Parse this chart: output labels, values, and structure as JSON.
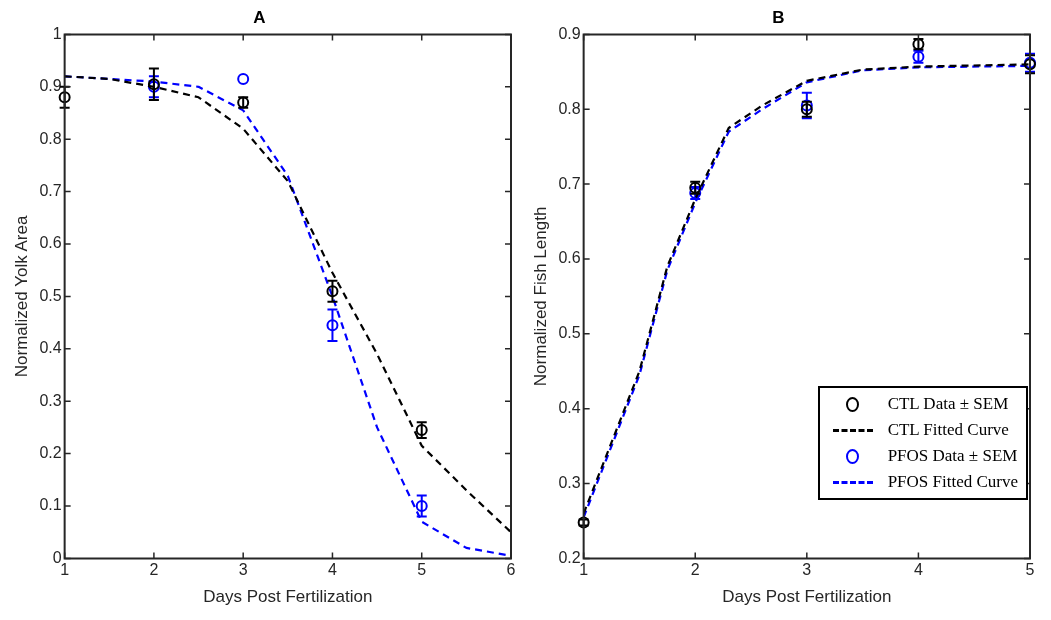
{
  "chart_data": [
    {
      "type": "line",
      "title": "A",
      "xlabel": "Days Post Fertilization",
      "ylabel": "Normalized Yolk Area",
      "xlim": [
        1,
        6
      ],
      "xticks": [
        1,
        2,
        3,
        4,
        5,
        6
      ],
      "ylim": [
        0,
        1
      ],
      "yticks": [
        0,
        0.1,
        0.2,
        0.3,
        0.4,
        0.5,
        0.6,
        0.7,
        0.8,
        0.9,
        1
      ],
      "grid": false,
      "legend": false,
      "series": [
        {
          "type": "scatter",
          "color": "#000000",
          "marker": "circle",
          "x": [
            1,
            2,
            3,
            4,
            5
          ],
          "values": [
            0.88,
            0.905,
            0.87,
            0.51,
            0.245
          ],
          "errors": [
            0.02,
            0.03,
            0.01,
            0.02,
            0.015
          ]
        },
        {
          "color": "#000000",
          "line_style": "dashed",
          "x": [
            1,
            1.5,
            2,
            2.5,
            3,
            3.5,
            4,
            4.5,
            5,
            5.5,
            6
          ],
          "values": [
            0.92,
            0.915,
            0.9,
            0.88,
            0.82,
            0.72,
            0.545,
            0.39,
            0.215,
            0.13,
            0.05
          ]
        },
        {
          "type": "scatter",
          "color": "#0000ff",
          "marker": "circle",
          "x": [
            2,
            3,
            4,
            5
          ],
          "values": [
            0.9,
            0.915,
            0.445,
            0.1
          ],
          "errors": [
            0.02,
            null,
            0.03,
            0.02
          ]
        },
        {
          "color": "#0000ff",
          "line_style": "dashed",
          "x": [
            1,
            2,
            2.5,
            3,
            3.5,
            4,
            4.5,
            5,
            5.5,
            6
          ],
          "values": [
            0.92,
            0.91,
            0.9,
            0.855,
            0.73,
            0.5,
            0.25,
            0.07,
            0.02,
            0.005
          ]
        }
      ]
    },
    {
      "type": "line",
      "title": "B",
      "xlabel": "Days Post Fertilization",
      "ylabel": "Normalized Fish Length",
      "xlim": [
        1,
        5
      ],
      "xticks": [
        1,
        2,
        3,
        4,
        5
      ],
      "ylim": [
        0.2,
        0.9
      ],
      "yticks": [
        0.2,
        0.3,
        0.4,
        0.5,
        0.6,
        0.7,
        0.8,
        0.9
      ],
      "grid": false,
      "legend": "bottom right",
      "series": [
        {
          "type": "scatter",
          "name": "CTL Data ± SEM",
          "color": "#000000",
          "marker": "circle",
          "x": [
            1,
            2,
            3,
            4,
            5
          ],
          "values": [
            0.248,
            0.695,
            0.8,
            0.887,
            0.86
          ],
          "errors": [
            0.004,
            0.008,
            0.01,
            0.007,
            0.012
          ]
        },
        {
          "name": "CTL Fitted Curve",
          "color": "#000000",
          "line_style": "dashed",
          "x": [
            1,
            1.5,
            1.75,
            2,
            2.3,
            2.6,
            3,
            3.5,
            4,
            5
          ],
          "values": [
            0.26,
            0.45,
            0.59,
            0.68,
            0.775,
            0.805,
            0.838,
            0.853,
            0.857,
            0.86
          ]
        },
        {
          "type": "scatter",
          "name": "PFOS Data ± SEM",
          "color": "#0000ff",
          "marker": "circle",
          "x": [
            2,
            3,
            4,
            5
          ],
          "values": [
            0.688,
            0.805,
            0.87,
            0.862
          ],
          "errors": [
            0.008,
            0.017,
            0.008,
            0.012
          ]
        },
        {
          "name": "PFOS Fitted Curve",
          "color": "#0000ff",
          "line_style": "dashed",
          "x": [
            1,
            1.5,
            1.75,
            2,
            2.3,
            2.6,
            3,
            3.5,
            4,
            5
          ],
          "values": [
            0.255,
            0.445,
            0.585,
            0.675,
            0.77,
            0.8,
            0.836,
            0.852,
            0.856,
            0.858
          ]
        }
      ]
    }
  ]
}
